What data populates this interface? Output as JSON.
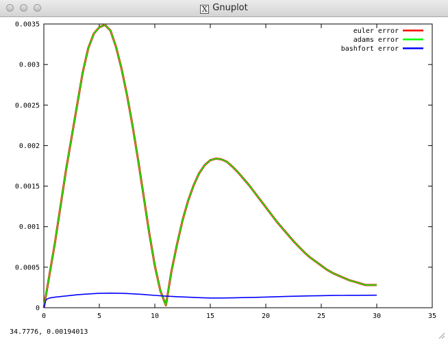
{
  "window": {
    "title": "Gnuplot"
  },
  "status": {
    "coords": "34.7776,  0.00194013"
  },
  "chart_data": {
    "type": "line",
    "xlim": [
      0,
      35
    ],
    "ylim": [
      0,
      0.0035
    ],
    "x_ticks": [
      "0",
      "5",
      "10",
      "15",
      "20",
      "25",
      "30",
      "35"
    ],
    "y_ticks": [
      "0",
      "0.0005",
      "0.001",
      "0.0015",
      "0.002",
      "0.0025",
      "0.003",
      "0.0035"
    ],
    "legend_position": "top-right",
    "series": [
      {
        "name": "euler error",
        "color": "#ff0000",
        "x": [
          0,
          0.5,
          1,
          1.5,
          2,
          2.5,
          3,
          3.5,
          4,
          4.5,
          5,
          5.5,
          6,
          6.5,
          7,
          7.5,
          8,
          8.5,
          9,
          9.5,
          10,
          10.5,
          11,
          11.5,
          12,
          12.5,
          13,
          13.5,
          14,
          14.5,
          15,
          15.5,
          16,
          16.5,
          17,
          17.5,
          18,
          18.5,
          19,
          19.5,
          20,
          20.5,
          21,
          21.5,
          22,
          22.5,
          23,
          23.5,
          24,
          24.5,
          25,
          25.5,
          26,
          26.5,
          27,
          27.5,
          28,
          28.5,
          29,
          29.5,
          30
        ],
        "y": [
          0,
          0.0004,
          0.0008,
          0.00125,
          0.0017,
          0.0021,
          0.0025,
          0.0029,
          0.0032,
          0.00338,
          0.00346,
          0.00349,
          0.00342,
          0.00322,
          0.00295,
          0.00262,
          0.00224,
          0.00182,
          0.00137,
          0.00092,
          0.00052,
          0.00021,
          3e-05,
          0.00045,
          0.00078,
          0.00108,
          0.00132,
          0.00151,
          0.00166,
          0.00176,
          0.00182,
          0.00184,
          0.00183,
          0.0018,
          0.00174,
          0.00167,
          0.00159,
          0.00151,
          0.00142,
          0.00133,
          0.00124,
          0.00115,
          0.00106,
          0.00098,
          0.0009,
          0.00082,
          0.00075,
          0.00068,
          0.00062,
          0.00057,
          0.00052,
          0.00047,
          0.00043,
          0.0004,
          0.00037,
          0.00034,
          0.00032,
          0.0003,
          0.00028,
          0.00028,
          0.00028
        ]
      },
      {
        "name": "adams error",
        "color": "#00ff00",
        "x": [
          0,
          0.5,
          1,
          1.5,
          2,
          2.5,
          3,
          3.5,
          4,
          4.5,
          5,
          5.5,
          6,
          6.5,
          7,
          7.5,
          8,
          8.5,
          9,
          9.5,
          10,
          10.5,
          11,
          11.5,
          12,
          12.5,
          13,
          13.5,
          14,
          14.5,
          15,
          15.5,
          16,
          16.5,
          17,
          17.5,
          18,
          18.5,
          19,
          19.5,
          20,
          20.5,
          21,
          21.5,
          22,
          22.5,
          23,
          23.5,
          24,
          24.5,
          25,
          25.5,
          26,
          26.5,
          27,
          27.5,
          28,
          28.5,
          29,
          29.5,
          30
        ],
        "y": [
          0,
          0.0004,
          0.0008,
          0.00125,
          0.0017,
          0.0021,
          0.0025,
          0.0029,
          0.0032,
          0.00338,
          0.00346,
          0.00349,
          0.00342,
          0.00322,
          0.00295,
          0.00262,
          0.00224,
          0.00182,
          0.00137,
          0.00092,
          0.00052,
          0.00021,
          3e-05,
          0.00045,
          0.00078,
          0.00108,
          0.00132,
          0.00151,
          0.00166,
          0.00176,
          0.00182,
          0.00184,
          0.00183,
          0.0018,
          0.00174,
          0.00167,
          0.00159,
          0.00151,
          0.00142,
          0.00133,
          0.00124,
          0.00115,
          0.00106,
          0.00098,
          0.0009,
          0.00082,
          0.00075,
          0.00068,
          0.00062,
          0.00057,
          0.00052,
          0.00047,
          0.00043,
          0.0004,
          0.00037,
          0.00034,
          0.00032,
          0.0003,
          0.00028,
          0.00028,
          0.00028
        ]
      },
      {
        "name": "bashfort error",
        "color": "#0000ff",
        "x": [
          0,
          0.2,
          0.5,
          1,
          2,
          3,
          4,
          5,
          6,
          7,
          8,
          9,
          10,
          11,
          12,
          13,
          14,
          15,
          16,
          17,
          18,
          19,
          20,
          21,
          22,
          23,
          24,
          25,
          26,
          27,
          28,
          29,
          30
        ],
        "y": [
          0,
          0.0001,
          0.00012,
          0.00013,
          0.000145,
          0.00016,
          0.00017,
          0.000178,
          0.00018,
          0.000178,
          0.000172,
          0.000163,
          0.000152,
          0.000143,
          0.000136,
          0.00013,
          0.000124,
          0.00012,
          0.00012,
          0.000122,
          0.000125,
          0.000128,
          0.000132,
          0.000136,
          0.00014,
          0.000143,
          0.000146,
          0.000149,
          0.000151,
          0.000152,
          0.000153,
          0.000154,
          0.000155
        ]
      }
    ]
  }
}
